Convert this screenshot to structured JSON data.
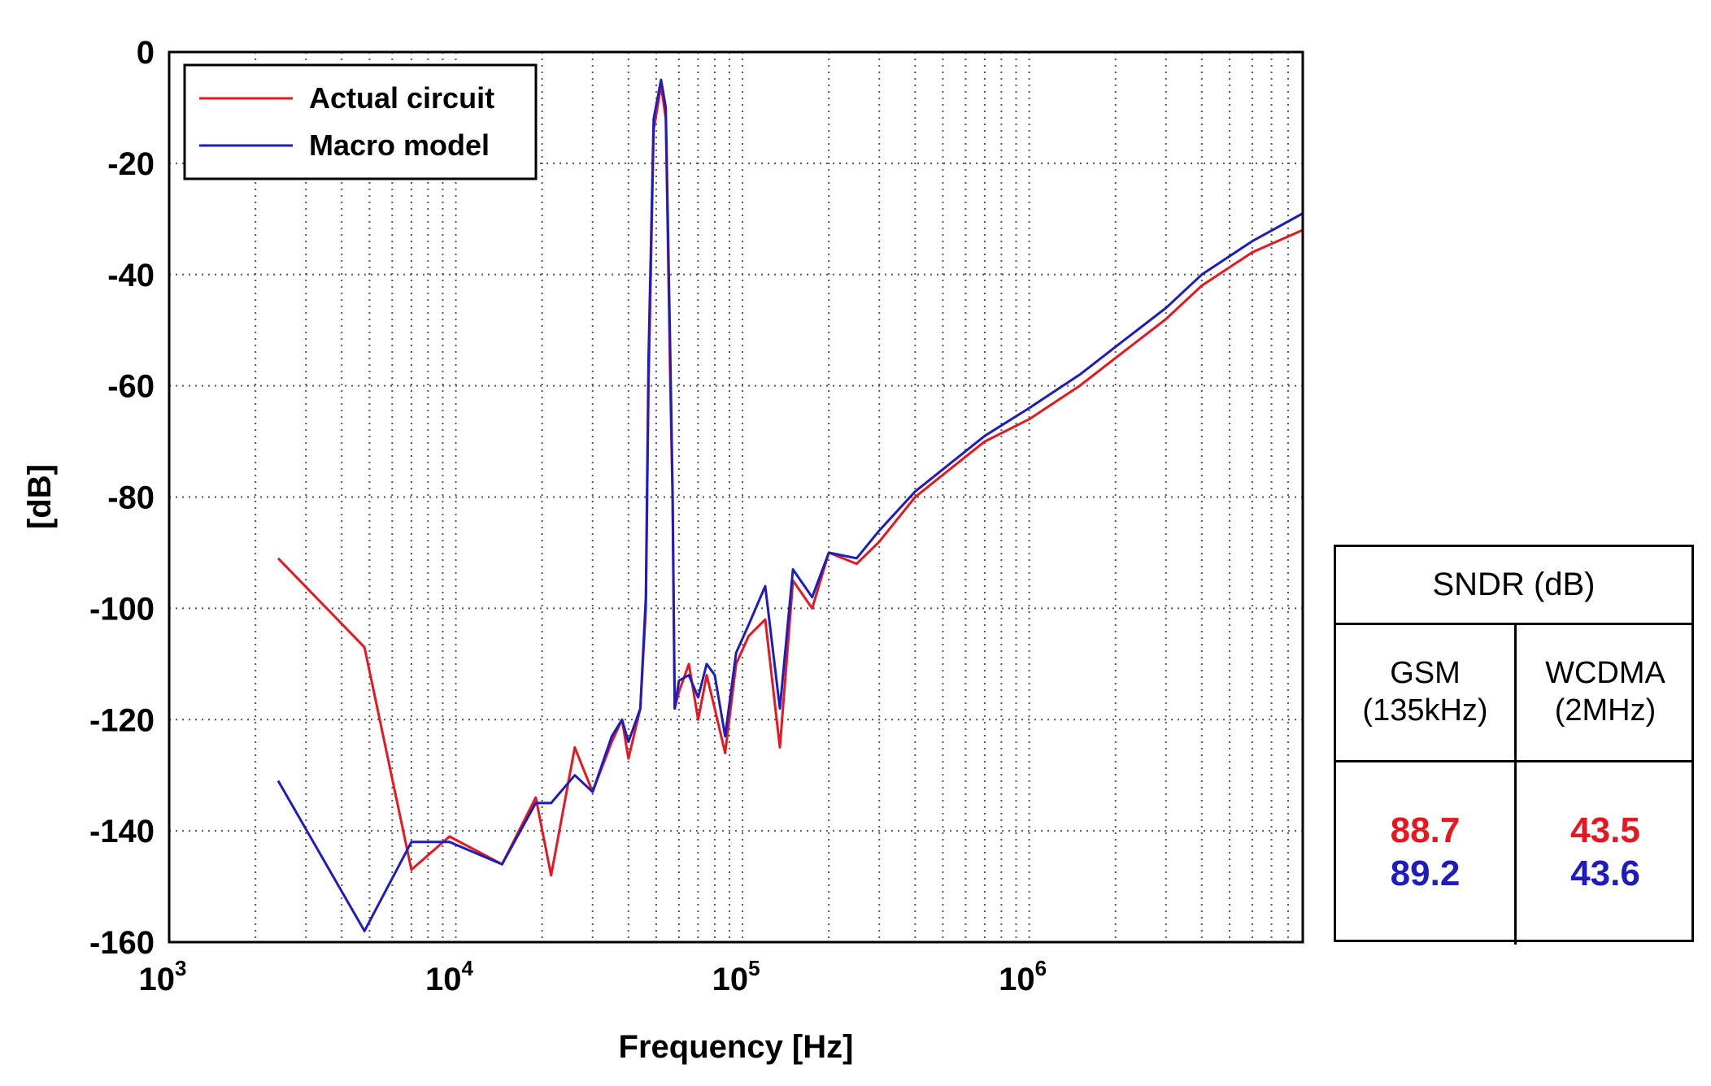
{
  "chart_data": {
    "type": "line",
    "xscale": "log",
    "xlim": [
      1000,
      9000000
    ],
    "ylim": [
      -160,
      0
    ],
    "xlabel": "Frequency [Hz]",
    "ylabel": "[dB]",
    "x_ticks": [
      {
        "base": "10",
        "exp": "3"
      },
      {
        "base": "10",
        "exp": "4"
      },
      {
        "base": "10",
        "exp": "5"
      },
      {
        "base": "10",
        "exp": "6"
      }
    ],
    "y_ticks": [
      "0",
      "-20",
      "-40",
      "-60",
      "-80",
      "-100",
      "-120",
      "-140",
      "-160"
    ],
    "grid": true,
    "legend_position": "top-left",
    "series": [
      {
        "name": "Actual circuit",
        "color": "#e8171f",
        "x": [
          2400,
          4800,
          7000,
          9500,
          14500,
          19000,
          21500,
          26000,
          30000,
          35000,
          38000,
          40000,
          44000,
          46000,
          47000,
          49000,
          52000,
          54000,
          56000,
          57000,
          58000,
          60000,
          65000,
          70000,
          75000,
          80000,
          87000,
          95000,
          105000,
          120000,
          135000,
          150000,
          175000,
          200000,
          250000,
          300000,
          400000,
          500000,
          700000,
          1000000,
          1500000,
          2000000,
          3000000,
          4000000,
          6000000,
          9000000
        ],
        "y": [
          -91,
          -107,
          -147,
          -141,
          -146,
          -134,
          -148,
          -125,
          -133,
          -124,
          -120,
          -127,
          -118,
          -100,
          -60,
          -14,
          -6,
          -12,
          -60,
          -80,
          -118,
          -115,
          -110,
          -120,
          -112,
          -118,
          -126,
          -110,
          -105,
          -102,
          -125,
          -95,
          -100,
          -90,
          -92,
          -88,
          -80,
          -76,
          -70,
          -66,
          -60,
          -55,
          -48,
          -42,
          -36,
          -32
        ]
      },
      {
        "name": "Macro model",
        "color": "#1c1cbf",
        "x": [
          2400,
          4800,
          7000,
          9500,
          14500,
          19000,
          21500,
          26000,
          30000,
          35000,
          38000,
          40000,
          44000,
          46000,
          47000,
          49000,
          52000,
          54000,
          56000,
          57000,
          58000,
          60000,
          65000,
          70000,
          75000,
          80000,
          87000,
          95000,
          105000,
          120000,
          135000,
          150000,
          175000,
          200000,
          250000,
          300000,
          400000,
          500000,
          700000,
          1000000,
          1500000,
          2000000,
          3000000,
          4000000,
          6000000,
          9000000
        ],
        "y": [
          -131,
          -158,
          -142,
          -142,
          -146,
          -135,
          -135,
          -130,
          -133,
          -123,
          -120,
          -124,
          -118,
          -98,
          -55,
          -12,
          -5,
          -10,
          -55,
          -78,
          -118,
          -113,
          -112,
          -116,
          -110,
          -112,
          -123,
          -108,
          -103,
          -96,
          -118,
          -93,
          -98,
          -90,
          -91,
          -86,
          -79,
          -75,
          -69,
          -64,
          -58,
          -53,
          -46,
          -40,
          -34,
          -29
        ]
      }
    ]
  },
  "legend": {
    "items": [
      "Actual circuit",
      "Macro model"
    ]
  },
  "sndr_table": {
    "title": "SNDR (dB)",
    "columns": [
      {
        "name": "GSM",
        "sub": "(135kHz)",
        "actual": "88.7",
        "macro": "89.2"
      },
      {
        "name": "WCDMA",
        "sub": "(2MHz)",
        "actual": "43.5",
        "macro": "43.6"
      }
    ]
  }
}
